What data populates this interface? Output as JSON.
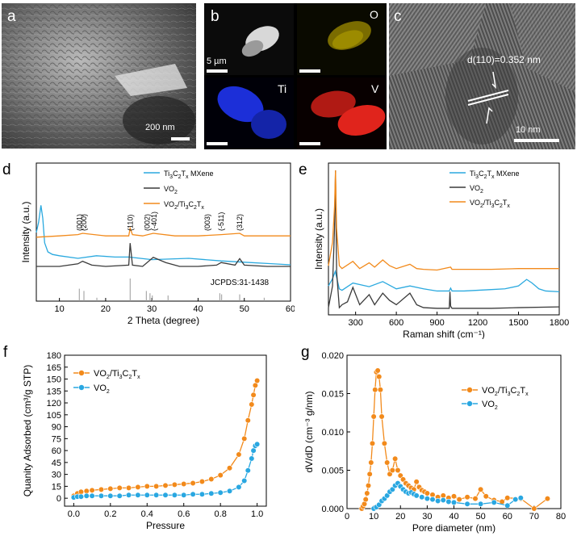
{
  "panels": {
    "a": {
      "label": "a",
      "scale": "200 nm"
    },
    "b": {
      "label": "b",
      "scale": "5 µm",
      "maps": [
        "O",
        "Ti",
        "V"
      ]
    },
    "c": {
      "label": "c",
      "scale": "10 nm",
      "d_spacing": "d(110)=0.352 nm"
    }
  },
  "colors": {
    "mxene": "#2aa9df",
    "vo2": "#3a3a3a",
    "composite": "#f28a1b",
    "blue_series": "#29a7e1",
    "map_O": "#c8b400",
    "map_Ti": "#1c2fd8",
    "map_V": "#e0241c"
  },
  "chart_data": [
    {
      "panel": "d",
      "type": "line",
      "xlabel": "2 Theta (degree)",
      "ylabel": "Intensity (a.u.)",
      "xlim": [
        5,
        60
      ],
      "xticks": [
        10,
        20,
        30,
        40,
        50,
        60
      ],
      "legend_position": "top-right",
      "series": [
        {
          "name": "Ti3C2Tx MXene",
          "color": "#2aa9df",
          "x": [
            5,
            5.5,
            6,
            6.4,
            6.8,
            7.5,
            8.5,
            10,
            14,
            18,
            22,
            25,
            30,
            38,
            45,
            50,
            55,
            60
          ],
          "y": [
            55,
            63,
            76,
            66,
            47,
            40,
            38,
            37,
            35,
            37,
            36,
            36,
            34,
            35,
            33,
            32,
            31,
            30
          ]
        },
        {
          "name": "VO2",
          "color": "#3a3a3a",
          "x": [
            5,
            10,
            14,
            15,
            17,
            20,
            25,
            25.3,
            25.8,
            28,
            30.3,
            33,
            36,
            40,
            44,
            45,
            48,
            49,
            50,
            55,
            60
          ],
          "y": [
            10,
            10,
            12,
            14,
            11,
            10,
            11,
            28,
            11,
            10,
            17,
            13,
            10,
            10,
            11,
            13,
            11,
            16,
            11,
            10,
            10
          ]
        },
        {
          "name": "VO2/Ti3C2Tx",
          "color": "#f28a1b",
          "x": [
            5,
            10,
            14,
            15,
            20,
            25,
            25.3,
            25.8,
            28,
            30.3,
            35,
            40,
            45,
            49,
            50,
            55,
            60
          ],
          "y": [
            42,
            43,
            44,
            45,
            43,
            43,
            49,
            44,
            43,
            45,
            43,
            43,
            44,
            45,
            43,
            43,
            43
          ]
        }
      ],
      "peak_labels": [
        {
          "x": 14.3,
          "text": "(001)"
        },
        {
          "x": 15.3,
          "text": "(200)"
        },
        {
          "x": 25.3,
          "text": "(110)"
        },
        {
          "x": 29.0,
          "text": "(002)"
        },
        {
          "x": 30.5,
          "text": "(-401)"
        },
        {
          "x": 42.0,
          "text": "(003)"
        },
        {
          "x": 45.0,
          "text": "(-511)"
        },
        {
          "x": 49.0,
          "text": "(312)"
        }
      ],
      "reference": {
        "label": "JCPDS:31-1438",
        "x": [
          14.3,
          15.3,
          18.1,
          25.3,
          28.8,
          29.6,
          30.1,
          33.5,
          44.7,
          45.1,
          49.0,
          54.3
        ],
        "h": [
          0.55,
          0.45,
          0.15,
          1.0,
          0.45,
          0.35,
          0.25,
          0.25,
          0.35,
          0.3,
          0.3,
          0.15
        ]
      }
    },
    {
      "panel": "e",
      "type": "line",
      "xlabel": "Raman shift  (cm⁻¹)",
      "ylabel": "Intensity (a.u.)",
      "xlim": [
        100,
        1800
      ],
      "xticks": [
        300,
        600,
        900,
        1200,
        1500,
        1800
      ],
      "legend_position": "top-right",
      "series": [
        {
          "name": "Ti3C2Tx MXene",
          "color": "#2aa9df",
          "x": [
            100,
            130,
            150,
            165,
            180,
            200,
            280,
            400,
            500,
            600,
            700,
            800,
            900,
            990,
            1000,
            1010,
            1100,
            1200,
            1300,
            1400,
            1500,
            1560,
            1600,
            1650,
            1700,
            1800
          ],
          "y": [
            40,
            50,
            60,
            48,
            36,
            34,
            44,
            39,
            46,
            36,
            40,
            36,
            33,
            33,
            37,
            33,
            33,
            34,
            35,
            36,
            40,
            49,
            44,
            36,
            33,
            32
          ]
        },
        {
          "name": "VO2",
          "color": "#3a3a3a",
          "x": [
            100,
            130,
            145,
            152,
            160,
            180,
            200,
            240,
            280,
            330,
            400,
            440,
            500,
            550,
            600,
            700,
            750,
            800,
            900,
            990,
            995,
            1000,
            1010,
            1100,
            1300,
            1500,
            1800
          ],
          "y": [
            10,
            40,
            120,
            200,
            60,
            10,
            14,
            18,
            38,
            14,
            28,
            14,
            30,
            20,
            14,
            30,
            14,
            10,
            9,
            9,
            32,
            12,
            9,
            9,
            9,
            10,
            11
          ]
        },
        {
          "name": "VO2/Ti3C2Tx",
          "color": "#f28a1b",
          "x": [
            100,
            130,
            145,
            152,
            160,
            180,
            200,
            280,
            330,
            400,
            440,
            500,
            550,
            600,
            700,
            750,
            800,
            900,
            1000,
            1010,
            1100,
            1300,
            1500,
            1800
          ],
          "y": [
            68,
            100,
            150,
            200,
            120,
            68,
            64,
            74,
            64,
            72,
            66,
            76,
            68,
            64,
            70,
            64,
            63,
            62,
            66,
            63,
            63,
            63,
            64,
            64
          ]
        }
      ]
    },
    {
      "panel": "f",
      "type": "line",
      "xlabel": "Pressure",
      "ylabel": "Quanity Adsorbed (cm³/g STP)",
      "xlim": [
        -0.05,
        1.05
      ],
      "ylim": [
        -10,
        180
      ],
      "xticks": [
        0.0,
        0.2,
        0.4,
        0.6,
        0.8,
        1.0
      ],
      "yticks": [
        0,
        15,
        30,
        45,
        60,
        75,
        90,
        105,
        120,
        135,
        150,
        165,
        180
      ],
      "legend_position": "top-left",
      "series": [
        {
          "name": "VO2/Ti3C2Tx",
          "color": "#f28a1b",
          "x": [
            0.0,
            0.02,
            0.04,
            0.07,
            0.1,
            0.15,
            0.2,
            0.25,
            0.3,
            0.35,
            0.4,
            0.45,
            0.5,
            0.55,
            0.6,
            0.65,
            0.7,
            0.75,
            0.8,
            0.85,
            0.9,
            0.93,
            0.95,
            0.97,
            0.98,
            0.99,
            1.0
          ],
          "y": [
            3,
            6,
            8,
            9,
            10,
            11,
            12,
            13,
            13,
            14,
            15,
            15,
            16,
            17,
            18,
            19,
            21,
            24,
            29,
            38,
            55,
            75,
            98,
            118,
            130,
            142,
            148
          ]
        },
        {
          "name": "VO2",
          "color": "#29a7e1",
          "x": [
            0.0,
            0.02,
            0.04,
            0.07,
            0.1,
            0.15,
            0.2,
            0.25,
            0.3,
            0.35,
            0.4,
            0.45,
            0.5,
            0.55,
            0.6,
            0.65,
            0.7,
            0.75,
            0.8,
            0.85,
            0.9,
            0.93,
            0.95,
            0.97,
            0.98,
            0.99,
            1.0
          ],
          "y": [
            1,
            2,
            2,
            3,
            3,
            3,
            3,
            3,
            4,
            4,
            4,
            4,
            4,
            4,
            4,
            5,
            5,
            6,
            7,
            9,
            14,
            22,
            35,
            50,
            60,
            66,
            68
          ]
        }
      ]
    },
    {
      "panel": "g",
      "type": "line",
      "xlabel": "Pore diameter (nm)",
      "ylabel": "dV/dD (cm⁻³ g/nm)",
      "xlim": [
        0,
        80
      ],
      "ylim": [
        0,
        0.02
      ],
      "xticks": [
        0,
        10,
        20,
        30,
        40,
        50,
        60,
        70,
        80
      ],
      "yticks": [
        0.0,
        0.005,
        0.01,
        0.015,
        0.02
      ],
      "legend_position": "top-right",
      "series": [
        {
          "name": "VO2/Ti3C2Tx",
          "color": "#f28a1b",
          "x": [
            5.5,
            6,
            6.5,
            7,
            7.5,
            8,
            8.5,
            9,
            9.5,
            10,
            10.5,
            11,
            11.5,
            12,
            12.5,
            13,
            14,
            15,
            16,
            17,
            18,
            19,
            20,
            21,
            22,
            23,
            24,
            25,
            26,
            27,
            28,
            29,
            30,
            32,
            34,
            36,
            38,
            40,
            42,
            45,
            48,
            50,
            52,
            55,
            58,
            60,
            65,
            70,
            75
          ],
          "y": [
            0,
            0.0003,
            0.0006,
            0.0012,
            0.002,
            0.003,
            0.0045,
            0.006,
            0.0085,
            0.012,
            0.0155,
            0.0178,
            0.018,
            0.0172,
            0.0155,
            0.012,
            0.0085,
            0.006,
            0.0045,
            0.005,
            0.0065,
            0.005,
            0.0043,
            0.0038,
            0.0033,
            0.003,
            0.0027,
            0.0025,
            0.0035,
            0.0028,
            0.0024,
            0.0022,
            0.002,
            0.0018,
            0.0015,
            0.0017,
            0.0014,
            0.0016,
            0.0012,
            0.0015,
            0.0013,
            0.0025,
            0.0016,
            0.0011,
            0.0009,
            0.0014,
            0.0013,
            0.0,
            0.0013
          ]
        },
        {
          "name": "VO2",
          "color": "#29a7e1",
          "x": [
            10,
            11,
            12,
            13,
            14,
            15,
            16,
            17,
            18,
            19,
            20,
            21,
            22,
            23,
            24,
            25,
            26,
            28,
            30,
            32,
            34,
            36,
            38,
            40,
            45,
            50,
            55,
            60,
            63,
            65
          ],
          "y": [
            0.0,
            0.0002,
            0.0005,
            0.001,
            0.0013,
            0.0017,
            0.0022,
            0.0025,
            0.003,
            0.0033,
            0.0029,
            0.0025,
            0.0022,
            0.002,
            0.0021,
            0.0019,
            0.0017,
            0.0015,
            0.0013,
            0.0012,
            0.001,
            0.0011,
            0.0009,
            0.0008,
            0.0006,
            0.0006,
            0.0008,
            0.0004,
            0.0012,
            0.0014
          ]
        }
      ]
    }
  ]
}
